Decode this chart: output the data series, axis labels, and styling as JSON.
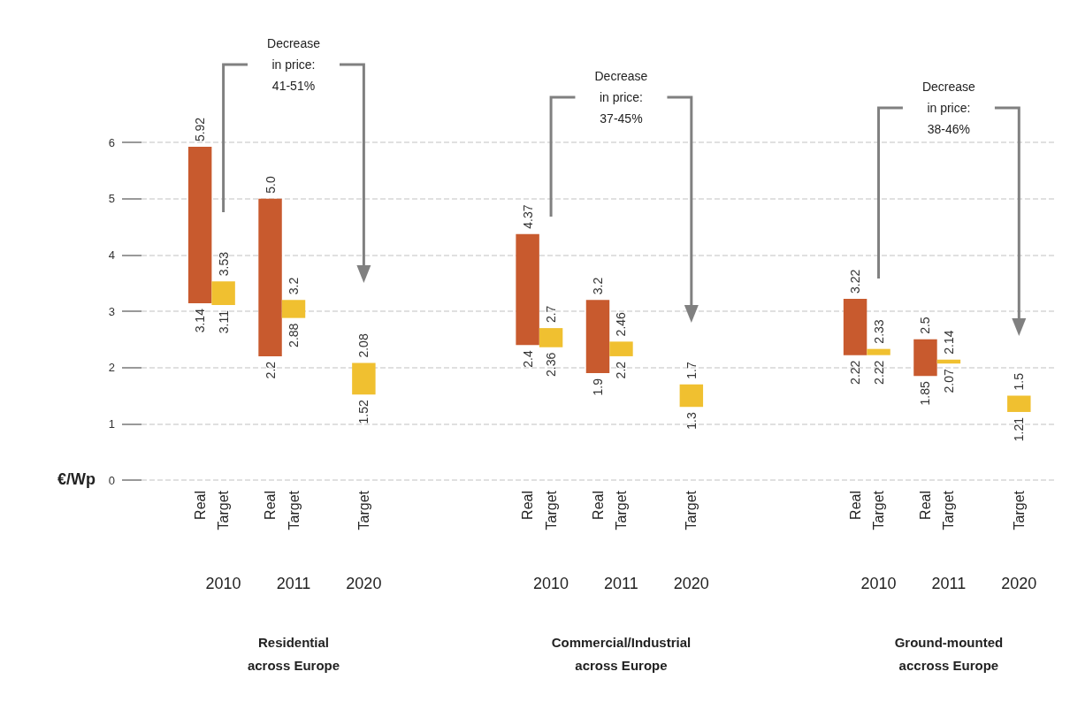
{
  "chart_data": {
    "type": "bar",
    "ylabel": "€/Wp",
    "categories": [
      null,
      null,
      "Real",
      "Target",
      null,
      "Real",
      "Target",
      null,
      null,
      "Target",
      null,
      null,
      null,
      null,
      null,
      null,
      "Real",
      "Target",
      null,
      "Real",
      "Target",
      null,
      null,
      "Target",
      null,
      null,
      null,
      null,
      null,
      null,
      "Real",
      "Target",
      null,
      "Real",
      "Target",
      null,
      null,
      "Target",
      null
    ],
    "series": [
      {
        "color": "#c85a2e",
        "values": [
          null,
          null,
          2.78,
          null,
          null,
          2.8,
          null,
          null,
          null,
          null,
          null,
          null,
          null,
          null,
          null,
          null,
          1.97,
          null,
          null,
          1.3,
          null,
          null,
          null,
          null,
          null,
          null,
          null,
          null,
          null,
          null,
          1.0,
          null,
          null,
          0.65,
          null,
          null,
          null,
          null,
          null
        ],
        "base": [
          null,
          null,
          3.14,
          null,
          null,
          2.2,
          null,
          null,
          null,
          null,
          null,
          null,
          null,
          null,
          null,
          null,
          2.4,
          null,
          null,
          1.9,
          null,
          null,
          null,
          null,
          null,
          null,
          null,
          null,
          null,
          null,
          2.22,
          null,
          null,
          1.85,
          null,
          null,
          null,
          null,
          null
        ],
        "value_labels": [
          null,
          null,
          "5.92",
          null,
          null,
          "5.0",
          null,
          null,
          null,
          null,
          null,
          null,
          null,
          null,
          null,
          null,
          "4.37",
          null,
          null,
          "3.2",
          null,
          null,
          null,
          null,
          null,
          null,
          null,
          null,
          null,
          null,
          "3.22",
          null,
          null,
          "2.5",
          null,
          null,
          null,
          null,
          null
        ]
      },
      {
        "color": "#f0c030",
        "values": [
          null,
          null,
          null,
          0.42,
          null,
          null,
          0.32,
          null,
          null,
          0.56,
          null,
          null,
          null,
          null,
          null,
          null,
          null,
          0.34,
          null,
          null,
          0.26,
          null,
          null,
          0.4,
          null,
          null,
          null,
          null,
          null,
          null,
          null,
          0.11,
          null,
          null,
          0.07,
          null,
          null,
          0.29,
          null
        ],
        "base": [
          null,
          null,
          null,
          3.11,
          null,
          null,
          2.88,
          null,
          null,
          1.52,
          null,
          null,
          null,
          null,
          null,
          null,
          null,
          2.36,
          null,
          null,
          2.2,
          null,
          null,
          1.3,
          null,
          null,
          null,
          null,
          null,
          null,
          null,
          2.22,
          null,
          null,
          2.07,
          null,
          null,
          1.21,
          null
        ],
        "value_labels": [
          null,
          null,
          null,
          "3.53",
          null,
          null,
          "3.2",
          null,
          null,
          "2.08",
          null,
          null,
          null,
          null,
          null,
          null,
          null,
          "2.7",
          null,
          null,
          "2.46",
          null,
          null,
          "1.7",
          null,
          null,
          null,
          null,
          null,
          null,
          null,
          "2.33",
          null,
          null,
          "2.14",
          null,
          null,
          "1.5",
          null
        ]
      }
    ],
    "ylim": [
      0,
      6
    ],
    "yticks": [
      0,
      1,
      2,
      3,
      4,
      5,
      6
    ],
    "grid": "y",
    "annotations": [
      "Decrease\nin price:\n41-51%",
      "Decrease\nin price:\n37-45%",
      "Decrease\nin price:\n38-46%",
      "2010",
      "2011",
      "2020",
      "2010",
      "2011",
      "2020",
      "2010",
      "2011",
      "2020",
      "Residential\nacross Europe",
      "Commercial/Industrial\nacross Europe",
      "Ground-mounted\naccross Europe",
      "3.14",
      "3.11",
      "2.2",
      "2.88",
      "1.52",
      "2.4",
      "2.36",
      "1.9",
      "2.2",
      "1.3",
      "2.22",
      "2.22",
      "1.85",
      "2.07",
      "1.21"
    ]
  }
}
